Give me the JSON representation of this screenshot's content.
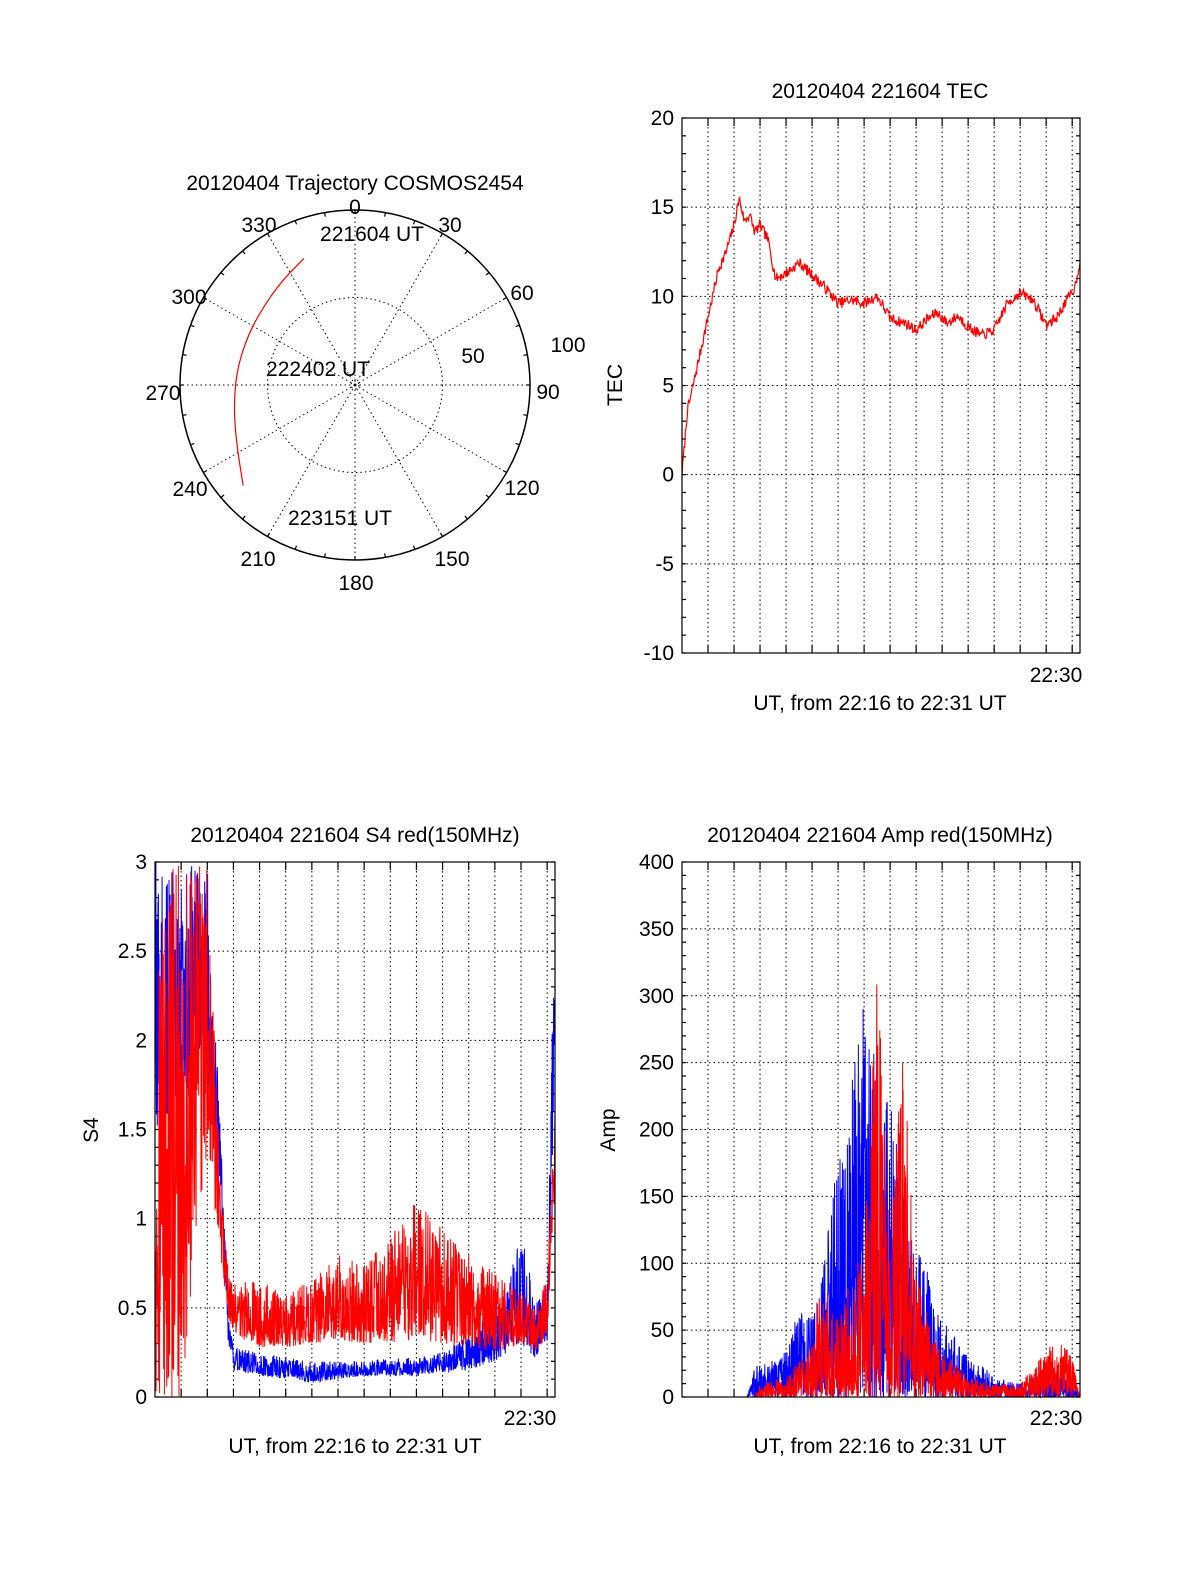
{
  "colors": {
    "red_series": "#ff0000",
    "blue_series": "#0000ff",
    "axes": "#000000"
  },
  "chart_data": [
    {
      "type": "polar",
      "title": "20120404 Trajectory COSMOS2454",
      "azimuth_labels": [
        "0",
        "30",
        "60",
        "90",
        "120",
        "150",
        "180",
        "210",
        "240",
        "270",
        "300",
        "330"
      ],
      "radial_ticks": [
        {
          "value": 50,
          "label": "50"
        },
        {
          "value": 100,
          "label": "100"
        }
      ],
      "grid": true,
      "trajectory": {
        "color": "#ff0000",
        "points": [
          {
            "azimuth": 338,
            "distance": 78
          },
          {
            "azimuth": 322,
            "distance": 72
          },
          {
            "azimuth": 300,
            "distance": 68
          },
          {
            "azimuth": 280,
            "distance": 68
          },
          {
            "azimuth": 262,
            "distance": 70
          },
          {
            "azimuth": 245,
            "distance": 75
          },
          {
            "azimuth": 228,
            "distance": 86
          }
        ],
        "annotations": [
          {
            "text": "221604 UT",
            "azimuth": 338,
            "distance": 78
          },
          {
            "text": "222402 UT",
            "azimuth": 0,
            "distance": 0
          },
          {
            "text": "223151 UT",
            "azimuth": 228,
            "distance": 86
          }
        ]
      }
    },
    {
      "type": "line",
      "title": "20120404 221604 TEC",
      "xlabel": "UT, from 22:16 to 22:31 UT",
      "ylabel": "TEC",
      "x_tick_label": "22:30",
      "xlim_minutes": [
        0,
        15.3
      ],
      "ylim": [
        -10,
        20
      ],
      "yticks": [
        -10,
        -5,
        0,
        5,
        10,
        15,
        20
      ],
      "grid": true,
      "series": [
        {
          "color": "#ff0000",
          "x_minutes": [
            0,
            0.2,
            0.5,
            0.8,
            1.1,
            1.4,
            1.7,
            2.0,
            2.2,
            2.4,
            2.6,
            2.8,
            3.0,
            3.3,
            3.6,
            3.9,
            4.2,
            4.5,
            5.0,
            5.5,
            6.0,
            6.5,
            7.0,
            7.5,
            8.0,
            8.3,
            8.6,
            9.0,
            9.4,
            9.8,
            10.2,
            10.6,
            11.0,
            11.5,
            12.0,
            12.5,
            13.0,
            13.5,
            14.0,
            14.4,
            14.8,
            15.1,
            15.3
          ],
          "values": [
            0,
            3.5,
            5.5,
            7.5,
            9.5,
            11.5,
            12.5,
            14.0,
            15.5,
            14.2,
            14.6,
            13.6,
            14.0,
            13.2,
            11.0,
            11.2,
            11.5,
            11.9,
            11.2,
            10.5,
            9.6,
            9.8,
            9.6,
            10.0,
            8.8,
            8.6,
            8.5,
            8.1,
            8.7,
            9.1,
            8.5,
            8.9,
            8.3,
            7.8,
            8.1,
            9.6,
            10.2,
            9.8,
            8.4,
            8.8,
            9.8,
            10.5,
            12.0
          ]
        }
      ]
    },
    {
      "type": "line",
      "title": "20120404 221604 S4 red(150MHz)",
      "xlabel": "UT, from 22:16 to 22:31 UT",
      "ylabel": "S4",
      "x_tick_label": "22:30",
      "xlim_minutes": [
        0,
        15.3
      ],
      "ylim": [
        0,
        3
      ],
      "yticks": [
        0,
        0.5,
        1,
        1.5,
        2,
        2.5,
        3
      ],
      "ytick_labels": [
        "0",
        "0.5",
        "1",
        "1.5",
        "2",
        "2.5",
        "3"
      ],
      "grid": true,
      "series": [
        {
          "color": "#ff0000",
          "x_minutes": [
            0,
            1,
            2,
            2.5,
            2.8,
            3,
            4,
            5,
            6,
            7,
            8,
            9,
            10,
            11,
            12,
            13,
            14,
            14.6,
            15,
            15.3
          ],
          "envelope_low": [
            0,
            0,
            1.4,
            0.8,
            0.45,
            0.35,
            0.28,
            0.28,
            0.3,
            0.32,
            0.3,
            0.3,
            0.32,
            0.3,
            0.28,
            0.25,
            0.3,
            0.25,
            0.35,
            1.2
          ],
          "envelope_high": [
            3,
            3,
            3,
            1.2,
            0.75,
            0.65,
            0.65,
            0.6,
            0.65,
            0.8,
            0.75,
            0.9,
            1.1,
            0.95,
            0.8,
            0.7,
            0.6,
            0.5,
            0.7,
            1.6
          ]
        },
        {
          "color": "#0000ff",
          "x_minutes": [
            0,
            1,
            2,
            2.5,
            2.8,
            3,
            4,
            5,
            6,
            7,
            8,
            9,
            10,
            11,
            12,
            13,
            13.5,
            14,
            14.5,
            15,
            15.3
          ],
          "envelope_low": [
            1.5,
            1.6,
            1.8,
            1.2,
            0.3,
            0.15,
            0.12,
            0.1,
            0.08,
            0.1,
            0.12,
            0.12,
            0.12,
            0.14,
            0.15,
            0.2,
            0.25,
            0.3,
            0.22,
            0.3,
            1.8
          ],
          "envelope_high": [
            3,
            3,
            3,
            1.5,
            0.45,
            0.28,
            0.25,
            0.22,
            0.2,
            0.2,
            0.2,
            0.22,
            0.22,
            0.25,
            0.35,
            0.5,
            0.6,
            1.0,
            0.55,
            0.55,
            2.95
          ]
        }
      ]
    },
    {
      "type": "area",
      "title": "20120404 221604 Amp red(150MHz)",
      "xlabel": "UT, from 22:16 to 22:31 UT",
      "ylabel": "Amp",
      "x_tick_label": "22:30",
      "xlim_minutes": [
        0,
        15.3
      ],
      "ylim": [
        0,
        400
      ],
      "yticks": [
        0,
        50,
        100,
        150,
        200,
        250,
        300,
        350,
        400
      ],
      "grid": true,
      "series": [
        {
          "color": "#0000ff",
          "x_minutes": [
            0,
            2.5,
            2.9,
            3.2,
            4.0,
            4.5,
            5.0,
            5.5,
            6.0,
            6.5,
            7.0,
            7.5,
            8.0,
            8.5,
            9.0,
            9.5,
            10.0,
            10.5,
            11.0,
            11.5,
            12.0,
            13.0,
            14.0,
            15.0,
            15.3
          ],
          "envelope_high": [
            0,
            0,
            30,
            25,
            35,
            70,
            60,
            110,
            180,
            240,
            300,
            250,
            220,
            170,
            120,
            90,
            60,
            45,
            30,
            25,
            15,
            10,
            20,
            15,
            0
          ]
        },
        {
          "color": "#ff0000",
          "x_minutes": [
            0,
            2.8,
            3.0,
            4.0,
            5.0,
            5.3,
            6.0,
            6.5,
            7.0,
            7.5,
            8.0,
            8.5,
            9.0,
            9.5,
            10.0,
            10.5,
            11.0,
            12.0,
            13.0,
            14.0,
            14.5,
            15.0,
            15.3
          ],
          "envelope_high": [
            0,
            0,
            10,
            15,
            40,
            95,
            60,
            90,
            110,
            340,
            120,
            270,
            90,
            60,
            35,
            25,
            15,
            10,
            10,
            35,
            45,
            30,
            0
          ]
        }
      ]
    }
  ]
}
